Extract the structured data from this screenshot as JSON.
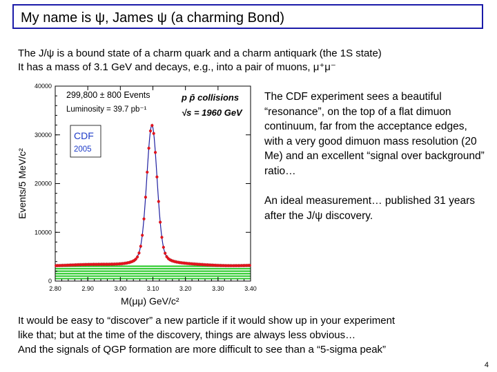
{
  "title": "My name is ψ, James ψ (a charming Bond)",
  "intro": {
    "line1": "The J/ψ is a bound state of a charm quark and a charm antiquark (the 1S state)",
    "line2": "It has a mass of 3.1 GeV and decays, e.g., into a pair of muons, μ⁺μ⁻"
  },
  "side_text": {
    "para1": "The CDF experiment sees a beautiful “resonance”, on the top of a flat dimuon continuum, far from the acceptance edges, with a very good dimuon mass resolution (20 Me) and an excellent “signal over background” ratio…",
    "para2": "An ideal measurement… published 31 years after the J/ψ discovery."
  },
  "bottom_text": {
    "line1": "It would be easy to “discover” a new particle if it would show up in your experiment",
    "line2": "like that; but at the time of the discovery, things are always less obvious…",
    "line3": "And the signals of QGP formation are more difficult to see than a “5-sigma peak”"
  },
  "page_number": "4",
  "chart_data": {
    "type": "scatter",
    "xlabel": "M(μμ) GeV/c²",
    "ylabel": "Events/5 MeV/c²",
    "xlim": [
      2.8,
      3.4
    ],
    "ylim": [
      0,
      40000
    ],
    "x_ticks": [
      "2.80",
      "2.90",
      "3.00",
      "3.10",
      "3.20",
      "3.30",
      "3.40"
    ],
    "y_ticks": [
      "0",
      "10000",
      "20000",
      "30000",
      "40000"
    ],
    "annotations": {
      "events": "299,800 ± 800 Events",
      "luminosity": "Luminosity = 39.7 pb⁻¹",
      "collisions": "p p̄ collisions",
      "energy": "√s = 1960 GeV",
      "experiment": "CDF",
      "year": "2005"
    },
    "peak": {
      "mass": 3.097,
      "height": 32000,
      "background": 3200,
      "width": 0.0155
    },
    "colors": {
      "points": "#e0141e",
      "fit": "#1e1ea0",
      "background_band": "#33cc33"
    }
  }
}
